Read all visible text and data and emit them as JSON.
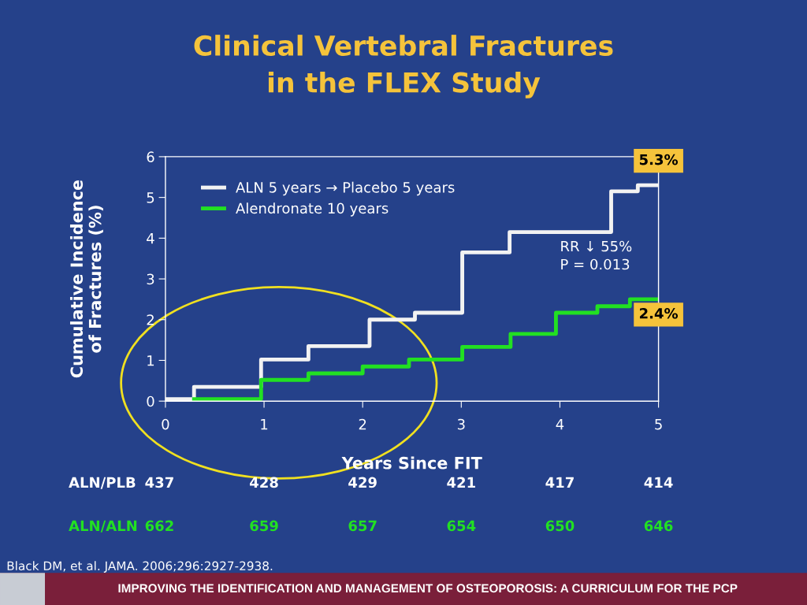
{
  "chart_data": {
    "type": "step",
    "title": "Clinical Vertebral Fractures\nin the FLEX Study",
    "xlabel": "Years Since FIT",
    "ylabel": "Cumulative Incidence\nof Fractures (%)",
    "series": [
      {
        "name": "ALN 5 years → Placebo 5 years",
        "color": "#f2f2f2",
        "x": [
          0,
          0.29,
          0.97,
          1.45,
          2.07,
          2.53,
          3.01,
          3.49,
          4.52,
          4.79,
          4.98
        ],
        "values": [
          0.05,
          0.35,
          1.02,
          1.35,
          2.0,
          2.17,
          3.65,
          4.15,
          5.15,
          5.3,
          5.3
        ]
      },
      {
        "name": "Alendronate 10 years",
        "color": "#22e022",
        "x": [
          0.29,
          0.97,
          1.45,
          2.0,
          2.47,
          3.01,
          3.5,
          3.96,
          4.38,
          4.71,
          4.98
        ],
        "values": [
          0.05,
          0.52,
          0.68,
          0.85,
          1.02,
          1.33,
          1.65,
          2.17,
          2.33,
          2.5,
          2.5
        ]
      }
    ],
    "xlim": [
      0,
      5
    ],
    "xticks": [
      0,
      1,
      2,
      3,
      4,
      5
    ],
    "ylim": [
      0,
      6
    ],
    "yticks": [
      0,
      1,
      2,
      3,
      4,
      5,
      6
    ],
    "grid": false,
    "legend": "top left",
    "marker": "none",
    "line_style": "solid",
    "annotations": [
      "RR ↓ 55%\nP = 0.013",
      "Black DM, et al. JAMA. 2006;296:2927-2938.",
      "IMPROVING THE IDENTIFICATION AND MANAGEMENT OF OSTEOPOROSIS: A CURRICULUM FOR THE PCP",
      "ALN/PLB",
      "437",
      "428",
      "429",
      "421",
      "417",
      "414",
      "ALN/ALN",
      "662",
      "659",
      "657",
      "654",
      "650",
      "646",
      {
        "text": "5.3%",
        "x": 5,
        "y": 5.3
      },
      {
        "text": "2.4%",
        "x": 5,
        "y": 2.4
      }
    ]
  }
}
